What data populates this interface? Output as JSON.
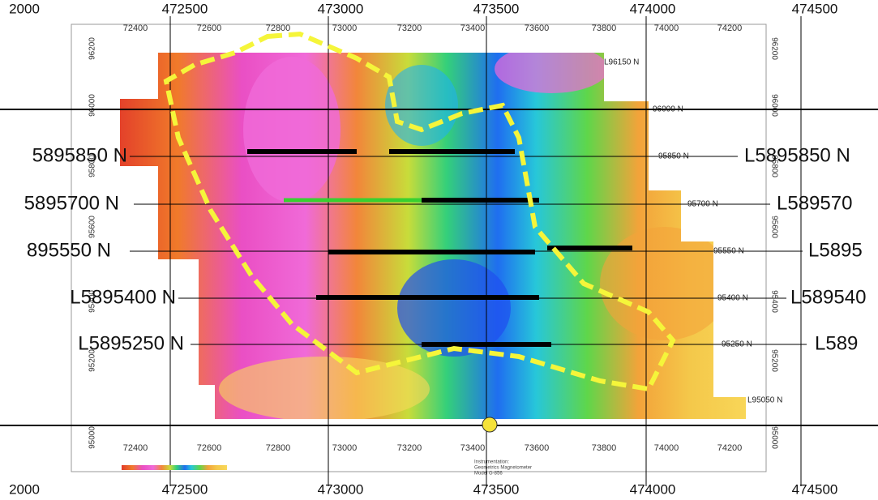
{
  "map": {
    "outer_x_labels": [
      "2000",
      "472500",
      "473000",
      "473500",
      "474000",
      "474500"
    ],
    "inner_x_labels": [
      "72400",
      "72600",
      "72800",
      "73000",
      "73200",
      "73400",
      "73600",
      "73800",
      "74000",
      "74200"
    ],
    "y_labels": [
      "96200",
      "96000",
      "95800",
      "95600",
      "95400",
      "95200",
      "95000"
    ],
    "line_labels": [
      "L96150 N",
      "96000 N",
      "95850 N",
      "95700 N",
      "95550 N",
      "95400 N",
      "95250 N",
      "L95050 N"
    ],
    "left_labels": [
      "5895850 N",
      "5895700 N",
      "895550 N",
      "L5895400 N",
      "L5895250 N"
    ],
    "right_labels": [
      "L5895850 N",
      "L589570",
      "L5895",
      "L589540",
      "L589"
    ],
    "instrument": [
      "Instrumentation:",
      "Geometrics Magnetometer",
      "Model G-856"
    ]
  }
}
